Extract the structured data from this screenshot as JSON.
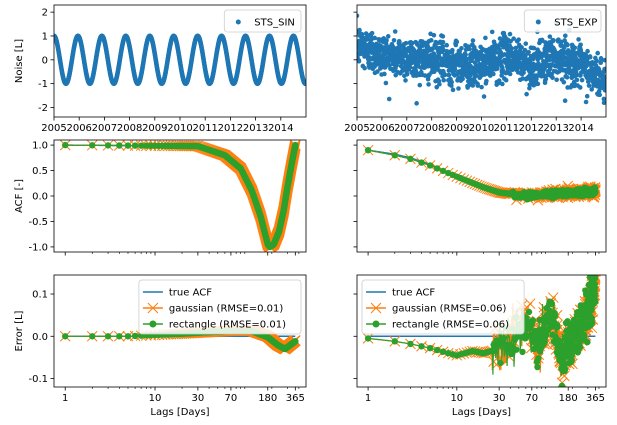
{
  "chart_data": [
    {
      "type": "scatter",
      "panel": "top-left",
      "title": "",
      "xlabel": "",
      "ylabel": "Noise [L]",
      "x_tick_labels": [
        "2005",
        "2006",
        "2007",
        "2008",
        "2009",
        "2010",
        "2011",
        "2012",
        "2013",
        "2014"
      ],
      "x_tick_years": [
        2005,
        2006,
        2007,
        2008,
        2009,
        2010,
        2011,
        2012,
        2013,
        2014
      ],
      "y_ticks": [
        -2,
        -1,
        0,
        1,
        2
      ],
      "ylim": [
        -2.4,
        2.3
      ],
      "xlim": [
        2005.0,
        2015.0
      ],
      "series": [
        {
          "name": "STS_SIN",
          "color": "#1f77b4",
          "kind": "sinusoid",
          "amplitude": 1.0,
          "period_years": 0.95,
          "phase_year": 2005.0
        }
      ],
      "legend": "top-right",
      "grid": false
    },
    {
      "type": "scatter",
      "panel": "top-right",
      "title": "",
      "xlabel": "",
      "ylabel": "",
      "x_tick_labels": [
        "2005",
        "2006",
        "2007",
        "2008",
        "2009",
        "2010",
        "2011",
        "2012",
        "2013",
        "2014"
      ],
      "x_tick_years": [
        2005,
        2006,
        2007,
        2008,
        2009,
        2010,
        2011,
        2012,
        2013,
        2014
      ],
      "ylim": [
        -2.4,
        2.3
      ],
      "xlim": [
        2005.0,
        2015.0
      ],
      "series": [
        {
          "name": "STS_EXP",
          "color": "#1f77b4",
          "kind": "noise",
          "spread": 0.75,
          "level_points": [
            [
              2005.0,
              0.6
            ],
            [
              2006.0,
              0.2
            ],
            [
              2008.0,
              0.0
            ],
            [
              2010.0,
              -0.3
            ],
            [
              2011.0,
              0.2
            ],
            [
              2012.0,
              -0.3
            ],
            [
              2013.0,
              0.2
            ],
            [
              2014.0,
              -0.3
            ],
            [
              2015.0,
              -0.9
            ]
          ]
        }
      ],
      "legend": "top-right",
      "grid": false
    },
    {
      "type": "line",
      "panel": "middle-left",
      "title": "",
      "xlabel": "",
      "ylabel": "ACF [-]",
      "x_scale": "log",
      "xlim": [
        0.75,
        480
      ],
      "ylim": [
        -1.1,
        1.1
      ],
      "y_ticks": [
        -1.0,
        -0.5,
        0.0,
        0.5,
        1.0
      ],
      "y_tick_labels": [
        "-1.0",
        "-0.5",
        "0.0",
        "0.5",
        "1.0"
      ],
      "series": [
        {
          "name": "true ACF",
          "color": "#1f77b4",
          "points": [
            [
              1,
              1.0
            ],
            [
              30,
              0.98
            ],
            [
              60,
              0.8
            ],
            [
              90,
              0.54
            ],
            [
              120,
              0.1
            ],
            [
              150,
              -0.4
            ],
            [
              180,
              -0.95
            ],
            [
              190,
              -1.0
            ],
            [
              210,
              -0.95
            ],
            [
              240,
              -0.7
            ],
            [
              270,
              -0.3
            ],
            [
              300,
              0.2
            ],
            [
              330,
              0.6
            ],
            [
              365,
              1.0
            ]
          ]
        },
        {
          "name": "gaussian (RMSE=0.01)",
          "color": "#ff7f0e",
          "marker": "x",
          "points": [
            [
              1,
              1.0
            ],
            [
              30,
              0.98
            ],
            [
              60,
              0.8
            ],
            [
              90,
              0.54
            ],
            [
              120,
              0.1
            ],
            [
              150,
              -0.4
            ],
            [
              180,
              -0.95
            ],
            [
              190,
              -1.0
            ],
            [
              210,
              -0.95
            ],
            [
              240,
              -0.7
            ],
            [
              270,
              -0.3
            ],
            [
              300,
              0.2
            ],
            [
              330,
              0.6
            ],
            [
              365,
              1.0
            ]
          ]
        },
        {
          "name": "rectangle (RMSE=0.01)",
          "color": "#2ca02c",
          "marker": "o",
          "points": [
            [
              1,
              1.0
            ],
            [
              30,
              0.98
            ],
            [
              60,
              0.8
            ],
            [
              90,
              0.54
            ],
            [
              120,
              0.1
            ],
            [
              150,
              -0.4
            ],
            [
              180,
              -0.95
            ],
            [
              190,
              -1.0
            ],
            [
              210,
              -0.95
            ],
            [
              240,
              -0.7
            ],
            [
              270,
              -0.3
            ],
            [
              300,
              0.2
            ],
            [
              330,
              0.6
            ],
            [
              365,
              1.0
            ]
          ]
        }
      ],
      "grid": false
    },
    {
      "type": "line",
      "panel": "middle-right",
      "title": "",
      "xlabel": "",
      "ylabel": "",
      "x_scale": "log",
      "xlim": [
        0.75,
        480
      ],
      "ylim": [
        -1.1,
        1.1
      ],
      "series": [
        {
          "name": "true ACF",
          "color": "#1f77b4",
          "points": [
            [
              1,
              0.9
            ],
            [
              2,
              0.82
            ],
            [
              3,
              0.75
            ],
            [
              5,
              0.62
            ],
            [
              10,
              0.4
            ],
            [
              20,
              0.18
            ],
            [
              30,
              0.08
            ],
            [
              50,
              0.02
            ],
            [
              80,
              0.02
            ],
            [
              120,
              0.05
            ],
            [
              180,
              0.06
            ],
            [
              250,
              0.08
            ],
            [
              365,
              0.1
            ]
          ]
        },
        {
          "name": "gaussian (RMSE=0.06)",
          "color": "#ff7f0e",
          "marker": "x",
          "noise_after": 40,
          "noise_amp": 0.08,
          "points": [
            [
              1,
              0.9
            ],
            [
              2,
              0.8
            ],
            [
              3,
              0.73
            ],
            [
              5,
              0.6
            ],
            [
              10,
              0.38
            ],
            [
              20,
              0.17
            ],
            [
              30,
              0.07
            ],
            [
              50,
              0.02
            ],
            [
              80,
              0.02
            ],
            [
              120,
              0.05
            ],
            [
              180,
              0.06
            ],
            [
              250,
              0.08
            ],
            [
              365,
              0.1
            ]
          ]
        },
        {
          "name": "rectangle (RMSE=0.06)",
          "color": "#2ca02c",
          "marker": "o",
          "noise_after": 40,
          "noise_amp": 0.07,
          "points": [
            [
              1,
              0.9
            ],
            [
              2,
              0.8
            ],
            [
              3,
              0.73
            ],
            [
              5,
              0.6
            ],
            [
              10,
              0.38
            ],
            [
              20,
              0.17
            ],
            [
              30,
              0.07
            ],
            [
              50,
              0.02
            ],
            [
              80,
              0.02
            ],
            [
              120,
              0.05
            ],
            [
              180,
              0.06
            ],
            [
              250,
              0.08
            ],
            [
              365,
              0.1
            ]
          ]
        }
      ],
      "grid": false
    },
    {
      "type": "line",
      "panel": "bottom-left",
      "title": "",
      "xlabel": "Lags [Days]",
      "ylabel": "Error [L]",
      "x_scale": "log",
      "xlim": [
        0.75,
        480
      ],
      "ylim": [
        -0.12,
        0.145
      ],
      "y_ticks": [
        -0.1,
        0.0,
        0.1
      ],
      "y_tick_labels": [
        "-0.1",
        "0.0",
        "0.1"
      ],
      "x_ticks": [
        1,
        10,
        30,
        70,
        180,
        365
      ],
      "x_tick_labels": [
        "1",
        "10",
        "30",
        "70",
        "180",
        "365"
      ],
      "series": [
        {
          "name": "true ACF",
          "color": "#1f77b4",
          "points": [
            [
              1,
              0.0
            ],
            [
              365,
              0.0
            ]
          ]
        },
        {
          "name": "gaussian (RMSE=0.01)",
          "color": "#ff7f0e",
          "marker": "x",
          "points": [
            [
              1,
              0.0
            ],
            [
              5,
              0.0
            ],
            [
              10,
              0.003
            ],
            [
              20,
              0.006
            ],
            [
              40,
              0.01
            ],
            [
              70,
              0.013
            ],
            [
              120,
              0.013
            ],
            [
              180,
              0.0
            ],
            [
              230,
              -0.02
            ],
            [
              280,
              -0.03
            ],
            [
              365,
              -0.01
            ]
          ]
        },
        {
          "name": "rectangle (RMSE=0.01)",
          "color": "#2ca02c",
          "marker": "o",
          "points": [
            [
              1,
              0.0
            ],
            [
              5,
              0.0
            ],
            [
              10,
              0.003
            ],
            [
              20,
              0.006
            ],
            [
              40,
              0.01
            ],
            [
              70,
              0.012
            ],
            [
              120,
              0.012
            ],
            [
              180,
              -0.002
            ],
            [
              230,
              -0.02
            ],
            [
              280,
              -0.03
            ],
            [
              365,
              -0.012
            ]
          ]
        }
      ],
      "legend": "top-right",
      "grid": false
    },
    {
      "type": "line",
      "panel": "bottom-right",
      "title": "",
      "xlabel": "Lags [Days]",
      "ylabel": "",
      "x_scale": "log",
      "xlim": [
        0.75,
        480
      ],
      "ylim": [
        -0.12,
        0.145
      ],
      "x_ticks": [
        1,
        10,
        30,
        70,
        180,
        365
      ],
      "x_tick_labels": [
        "1",
        "10",
        "30",
        "70",
        "180",
        "365"
      ],
      "series": [
        {
          "name": "true ACF",
          "color": "#1f77b4",
          "points": [
            [
              1,
              0.0
            ],
            [
              365,
              0.0
            ]
          ]
        },
        {
          "name": "gaussian (RMSE=0.06)",
          "color": "#ff7f0e",
          "marker": "x",
          "noise_after": 25,
          "noise_amp": 0.05,
          "points": [
            [
              1,
              -0.005
            ],
            [
              2,
              -0.012
            ],
            [
              3,
              -0.018
            ],
            [
              5,
              -0.028
            ],
            [
              8,
              -0.04
            ],
            [
              10,
              -0.045
            ],
            [
              15,
              -0.035
            ],
            [
              20,
              -0.04
            ],
            [
              30,
              -0.03
            ],
            [
              40,
              -0.01
            ],
            [
              60,
              0.04
            ],
            [
              80,
              -0.02
            ],
            [
              120,
              0.05
            ],
            [
              150,
              -0.06
            ],
            [
              180,
              -0.02
            ],
            [
              250,
              0.02
            ],
            [
              320,
              0.08
            ],
            [
              365,
              0.12
            ]
          ]
        },
        {
          "name": "rectangle (RMSE=0.06)",
          "color": "#2ca02c",
          "marker": "o",
          "noise_after": 25,
          "noise_amp": 0.05,
          "points": [
            [
              1,
              -0.005
            ],
            [
              2,
              -0.012
            ],
            [
              3,
              -0.018
            ],
            [
              5,
              -0.028
            ],
            [
              8,
              -0.04
            ],
            [
              10,
              -0.045
            ],
            [
              15,
              -0.035
            ],
            [
              20,
              -0.04
            ],
            [
              30,
              -0.03
            ],
            [
              40,
              -0.01
            ],
            [
              60,
              0.04
            ],
            [
              80,
              -0.02
            ],
            [
              120,
              0.05
            ],
            [
              150,
              -0.06
            ],
            [
              180,
              -0.02
            ],
            [
              250,
              0.02
            ],
            [
              320,
              0.08
            ],
            [
              365,
              0.12
            ]
          ]
        }
      ],
      "legend": "top-left",
      "grid": false
    }
  ]
}
